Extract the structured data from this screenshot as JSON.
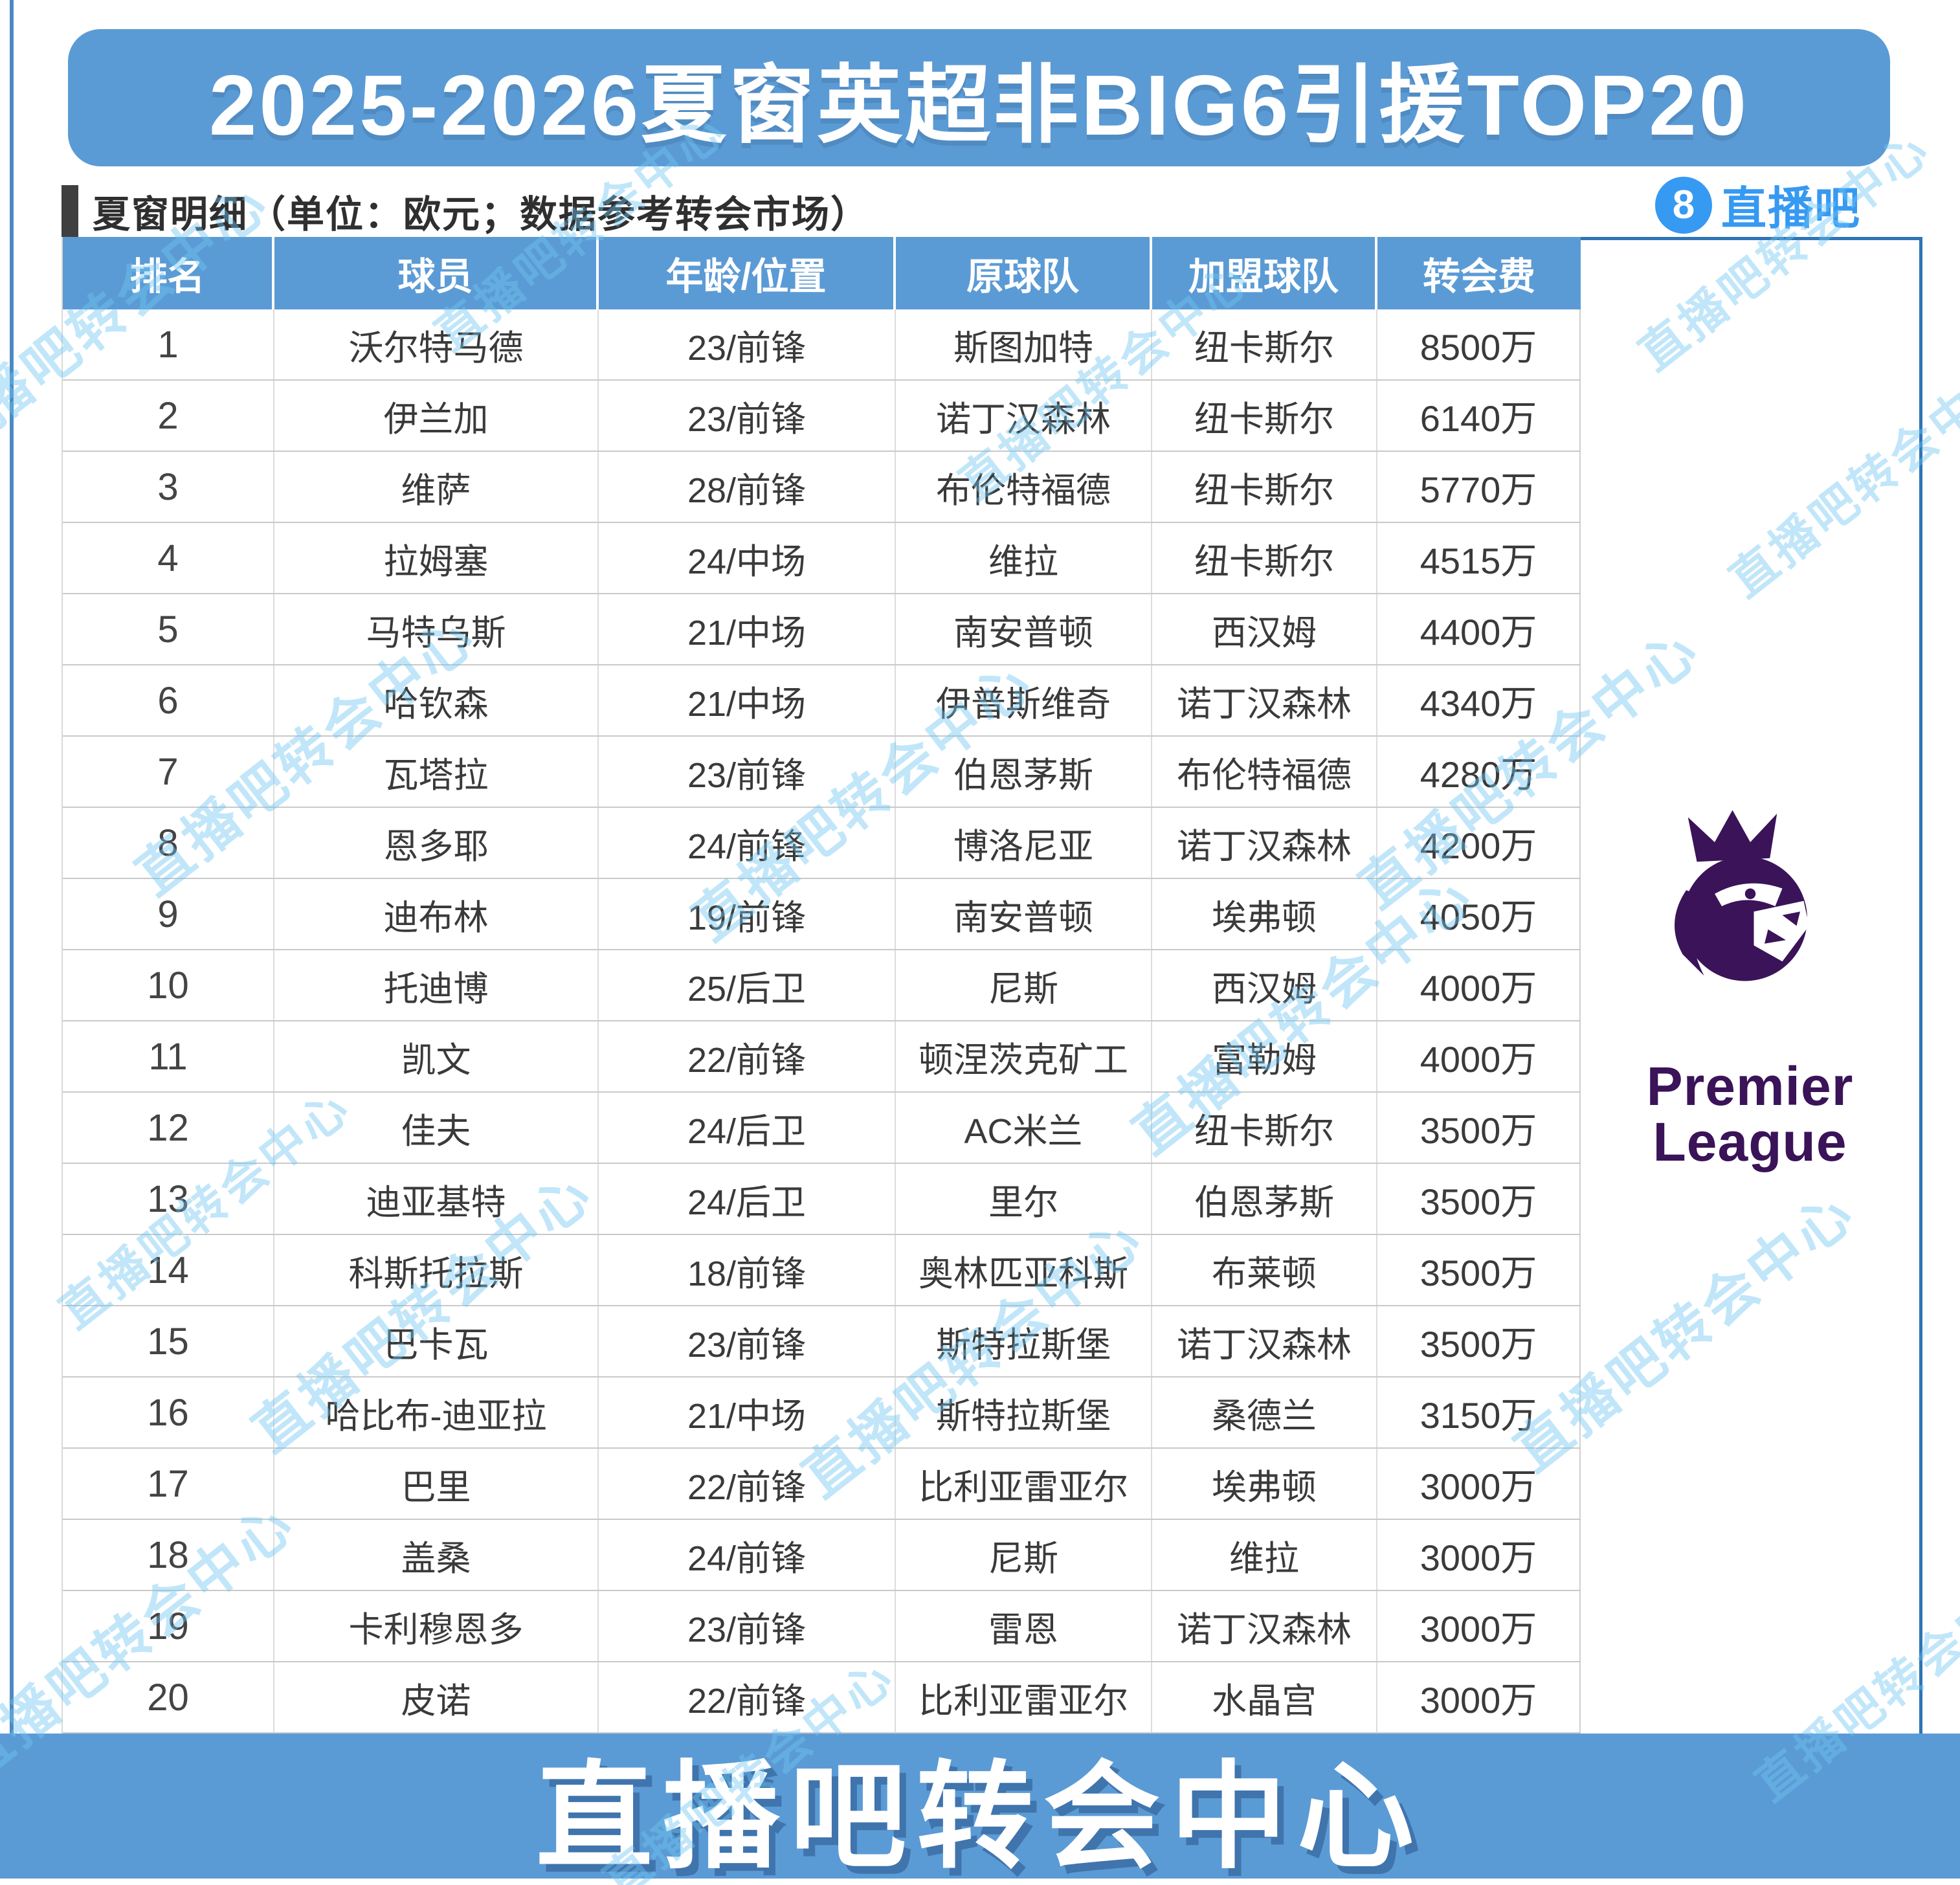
{
  "title": "2025-2026夏窗英超非BIG6引援TOP20",
  "subtitle": "夏窗明细（单位：欧元；数据参考转会市场）",
  "brand": {
    "icon_text": "8",
    "name": "直播吧"
  },
  "watermark_text": "直播吧转会中心",
  "footer": "直播吧转会中心",
  "premier_league": {
    "line1": "Premier",
    "line2": "League"
  },
  "colors": {
    "primary_blue": "#5b9bd5",
    "brand_blue": "#3699f2",
    "frame_blue": "#2e75b6",
    "watermark_blue": "#6ec6f2",
    "pl_purple": "#3a1358",
    "text_dark": "#3a3a3a"
  },
  "chart_data": {
    "type": "table",
    "title": "2025-2026夏窗英超非BIG6引援TOP20",
    "unit": "万欧元",
    "headers": [
      "排名",
      "球员",
      "年龄/位置",
      "原球队",
      "加盟球队",
      "转会费"
    ],
    "rows": [
      [
        "1",
        "沃尔特马德",
        "23/前锋",
        "斯图加特",
        "纽卡斯尔",
        "8500万"
      ],
      [
        "2",
        "伊兰加",
        "23/前锋",
        "诺丁汉森林",
        "纽卡斯尔",
        "6140万"
      ],
      [
        "3",
        "维萨",
        "28/前锋",
        "布伦特福德",
        "纽卡斯尔",
        "5770万"
      ],
      [
        "4",
        "拉姆塞",
        "24/中场",
        "维拉",
        "纽卡斯尔",
        "4515万"
      ],
      [
        "5",
        "马特乌斯",
        "21/中场",
        "南安普顿",
        "西汉姆",
        "4400万"
      ],
      [
        "6",
        "哈钦森",
        "21/中场",
        "伊普斯维奇",
        "诺丁汉森林",
        "4340万"
      ],
      [
        "7",
        "瓦塔拉",
        "23/前锋",
        "伯恩茅斯",
        "布伦特福德",
        "4280万"
      ],
      [
        "8",
        "恩多耶",
        "24/前锋",
        "博洛尼亚",
        "诺丁汉森林",
        "4200万"
      ],
      [
        "9",
        "迪布林",
        "19/前锋",
        "南安普顿",
        "埃弗顿",
        "4050万"
      ],
      [
        "10",
        "托迪博",
        "25/后卫",
        "尼斯",
        "西汉姆",
        "4000万"
      ],
      [
        "11",
        "凯文",
        "22/前锋",
        "顿涅茨克矿工",
        "富勒姆",
        "4000万"
      ],
      [
        "12",
        "佳夫",
        "24/后卫",
        "AC米兰",
        "纽卡斯尔",
        "3500万"
      ],
      [
        "13",
        "迪亚基特",
        "24/后卫",
        "里尔",
        "伯恩茅斯",
        "3500万"
      ],
      [
        "14",
        "科斯托拉斯",
        "18/前锋",
        "奥林匹亚科斯",
        "布莱顿",
        "3500万"
      ],
      [
        "15",
        "巴卡瓦",
        "23/前锋",
        "斯特拉斯堡",
        "诺丁汉森林",
        "3500万"
      ],
      [
        "16",
        "哈比布-迪亚拉",
        "21/中场",
        "斯特拉斯堡",
        "桑德兰",
        "3150万"
      ],
      [
        "17",
        "巴里",
        "22/前锋",
        "比利亚雷亚尔",
        "埃弗顿",
        "3000万"
      ],
      [
        "18",
        "盖桑",
        "24/前锋",
        "尼斯",
        "维拉",
        "3000万"
      ],
      [
        "19",
        "卡利穆恩多",
        "23/前锋",
        "雷恩",
        "诺丁汉森林",
        "3000万"
      ],
      [
        "20",
        "皮诺",
        "22/前锋",
        "比利亚雷亚尔",
        "水晶宫",
        "3000万"
      ]
    ]
  }
}
